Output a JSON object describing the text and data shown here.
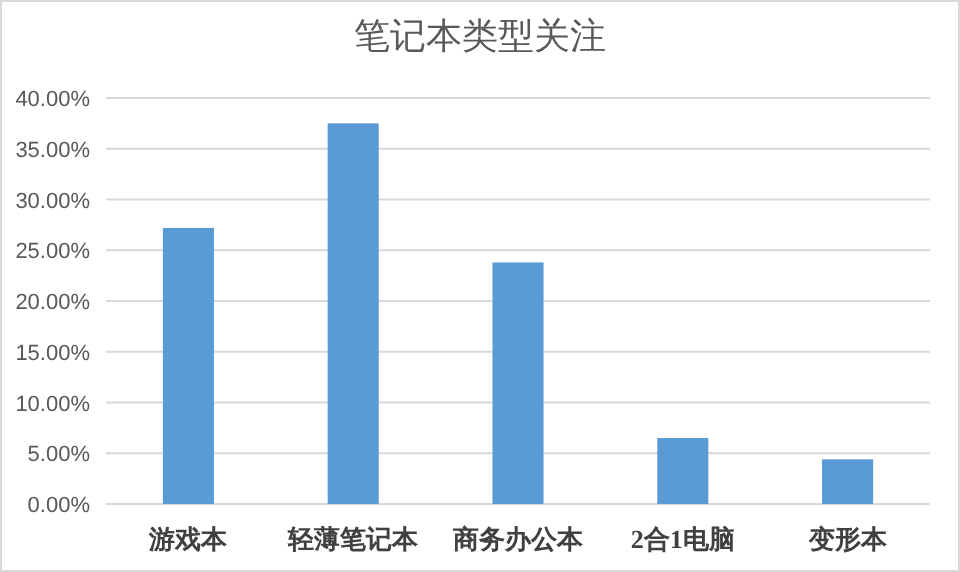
{
  "chart_data": {
    "type": "bar",
    "title": "笔记本类型关注",
    "categories": [
      "游戏本",
      "轻薄笔记本",
      "商务办公本",
      "2合1电脑",
      "变形本"
    ],
    "values": [
      27.2,
      37.5,
      23.8,
      6.5,
      4.4
    ],
    "color": "#5b9bd5",
    "ylim": [
      0,
      40
    ],
    "yticks": [
      {
        "value": 0,
        "label": "0.00%"
      },
      {
        "value": 5,
        "label": "5.00%"
      },
      {
        "value": 10,
        "label": "10.00%"
      },
      {
        "value": 15,
        "label": "15.00%"
      },
      {
        "value": 20,
        "label": "20.00%"
      },
      {
        "value": 25,
        "label": "25.00%"
      },
      {
        "value": 30,
        "label": "30.00%"
      },
      {
        "value": 35,
        "label": "35.00%"
      },
      {
        "value": 40,
        "label": "40.00%"
      }
    ],
    "grid": "y"
  }
}
